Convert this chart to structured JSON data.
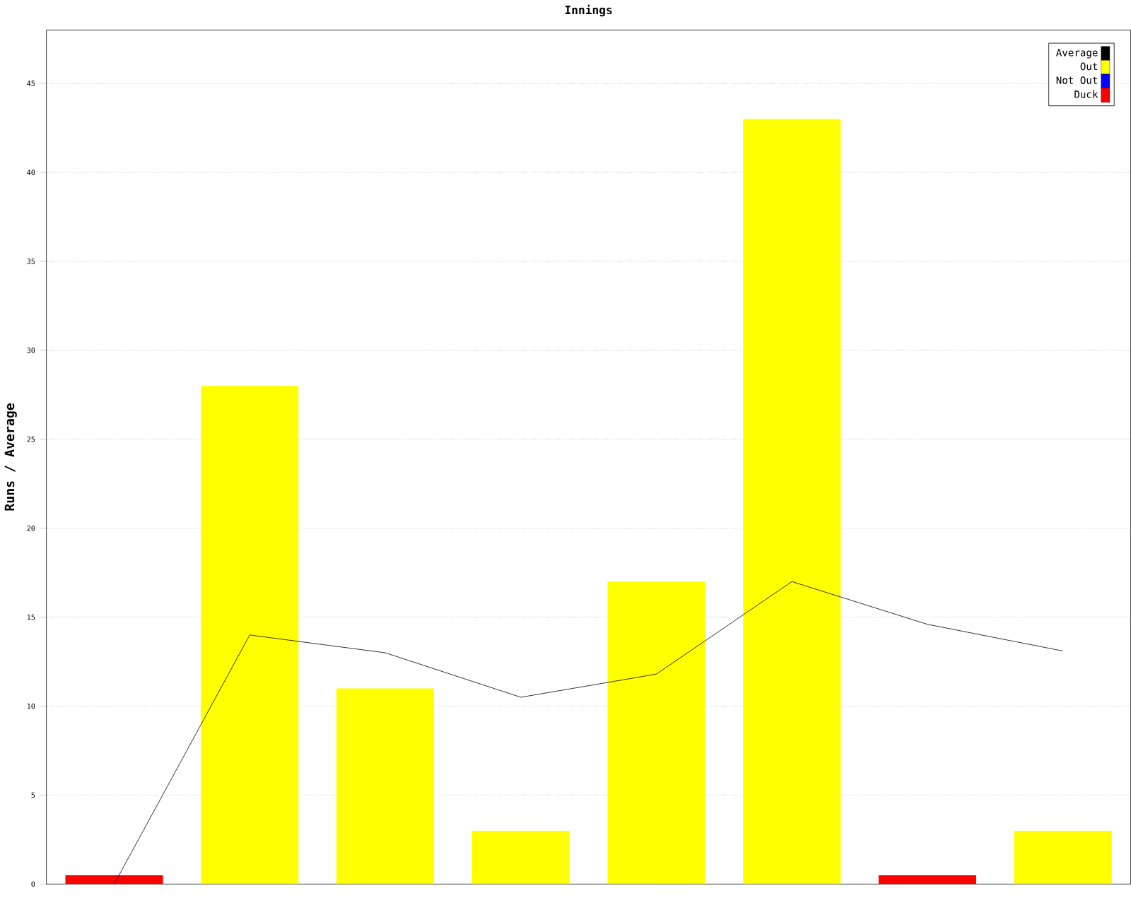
{
  "chart_data": {
    "type": "bar",
    "title": "Innings",
    "ylabel": "Runs / Average",
    "categories": [
      null,
      null,
      null,
      null,
      null,
      null,
      null,
      null
    ],
    "series": [
      {
        "name": "Average",
        "type": "line",
        "color": "#000000",
        "values": [
          0,
          14,
          13,
          10.5,
          11.8,
          17,
          14.6,
          13.1
        ]
      },
      {
        "name": "Out",
        "color": "#ffff00",
        "values": [
          null,
          28,
          11,
          3,
          17,
          43,
          null,
          3
        ]
      },
      {
        "name": "Not Out",
        "color": "#0000ff",
        "values": [
          null,
          null,
          null,
          null,
          null,
          null,
          null,
          null
        ]
      },
      {
        "name": "Duck",
        "color": "#ff0000",
        "values": [
          0.5,
          null,
          null,
          null,
          null,
          null,
          0.5,
          null
        ]
      }
    ],
    "ylim": [
      0,
      48
    ],
    "yticks": [
      0,
      5,
      10,
      15,
      20,
      25,
      30,
      35,
      40,
      45
    ],
    "grid": "y",
    "legend": "top right",
    "marker": "none",
    "line_style": "solid"
  }
}
